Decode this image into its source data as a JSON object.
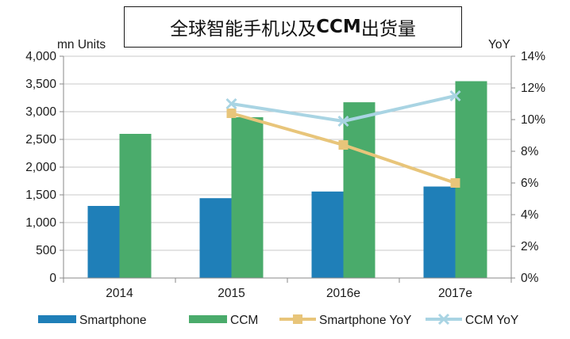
{
  "title": {
    "cjk_part1": "全球智能手机以及",
    "latin_part": "CCM",
    "cjk_part2": "出货量"
  },
  "chart_data": {
    "type": "bar",
    "categories": [
      "2014",
      "2015",
      "2016e",
      "2017e"
    ],
    "left_axis_unit": "mn Units",
    "right_axis_unit": "YoY",
    "left_ylim": [
      0,
      4000
    ],
    "left_ticks": [
      0,
      500,
      1000,
      1500,
      2000,
      2500,
      3000,
      3500,
      4000
    ],
    "left_tick_labels": [
      "0",
      "500",
      "1,000",
      "1,500",
      "2,000",
      "2,500",
      "3,000",
      "3,500",
      "4,000"
    ],
    "right_ylim": [
      0,
      14
    ],
    "right_ticks": [
      0,
      2,
      4,
      6,
      8,
      10,
      12,
      14
    ],
    "right_tick_labels": [
      "0%",
      "2%",
      "4%",
      "6%",
      "8%",
      "10%",
      "12%",
      "14%"
    ],
    "grid": true,
    "legend_position": "bottom",
    "series": [
      {
        "name": "Smartphone",
        "kind": "bar",
        "axis": "left",
        "color": "#1f7fb8",
        "values": [
          1300,
          1440,
          1560,
          1650
        ]
      },
      {
        "name": "CCM",
        "kind": "bar",
        "axis": "left",
        "color": "#4aab6b",
        "values": [
          2600,
          2900,
          3170,
          3550
        ]
      },
      {
        "name": "Smartphone YoY",
        "kind": "line",
        "axis": "right",
        "color": "#e8c57a",
        "marker": "square",
        "values": [
          null,
          10.4,
          8.4,
          6.0
        ]
      },
      {
        "name": "CCM YoY",
        "kind": "line",
        "axis": "right",
        "color": "#a9d4e3",
        "marker": "x",
        "values": [
          null,
          11.0,
          9.9,
          11.5
        ]
      }
    ]
  }
}
